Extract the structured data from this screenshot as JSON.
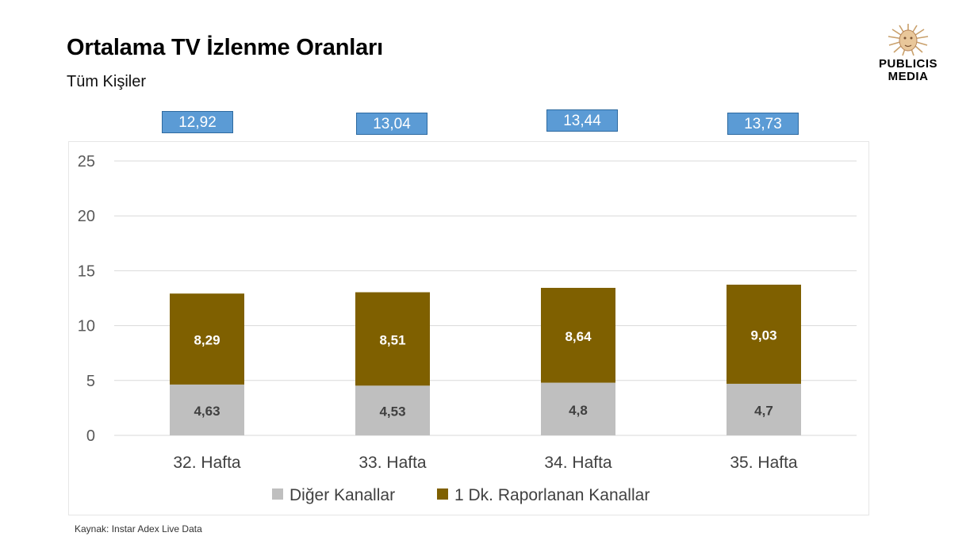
{
  "header": {
    "title": "Ortalama TV İzlenme Oranları",
    "subtitle": "Tüm Kişiler"
  },
  "logo": {
    "line1": "PUBLICIS",
    "line2": "MEDIA",
    "icon": "lion-head-icon"
  },
  "footer": {
    "source": "Kaynak: Instar  Adex Live Data"
  },
  "colors": {
    "other_channels": "#bfbfbf",
    "reported_channels": "#7f6000",
    "total_box": "#5b9bd5",
    "grid": "#d9d9d9"
  },
  "chart_data": {
    "type": "bar",
    "stacked": true,
    "categories": [
      "32. Hafta",
      "33. Hafta",
      "34. Hafta",
      "35. Hafta"
    ],
    "series": [
      {
        "name": "Diğer Kanallar",
        "values": [
          4.63,
          4.53,
          4.8,
          4.7
        ],
        "labels": [
          "4,63",
          "4,53",
          "4,8",
          "4,7"
        ]
      },
      {
        "name": "1 Dk. Raporlanan Kanallar",
        "values": [
          8.29,
          8.51,
          8.64,
          9.03
        ],
        "labels": [
          "8,29",
          "8,51",
          "8,64",
          "9,03"
        ]
      }
    ],
    "totals": [
      "12,92",
      "13,04",
      "13,44",
      "13,73"
    ],
    "ylim": [
      0,
      25
    ],
    "yticks": [
      "0",
      "5",
      "10",
      "15",
      "20",
      "25"
    ],
    "ytick_values": [
      0,
      5,
      10,
      15,
      20,
      25
    ],
    "grid": true,
    "legend": "bottom"
  }
}
